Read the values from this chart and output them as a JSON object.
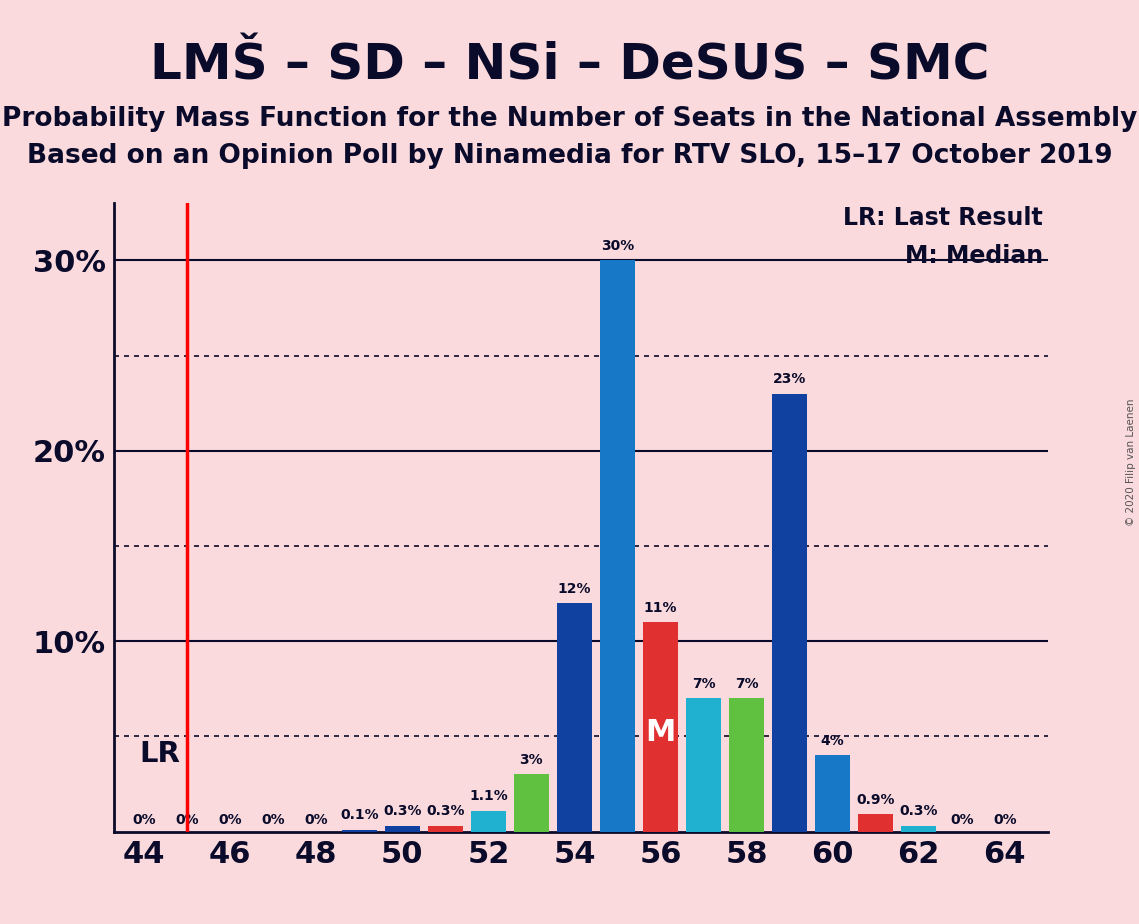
{
  "title": "LMŠ – SD – NSi – DeSUS – SMC",
  "subtitle1": "Probability Mass Function for the Number of Seats in the National Assembly",
  "subtitle2": "Based on an Opinion Poll by Ninamedia for RTV SLO, 15–17 October 2019",
  "copyright": "© 2020 Filip van Laenen",
  "lr_label": "LR: Last Result",
  "median_label": "M: Median",
  "lr_x": 45,
  "median_seat": 56,
  "bar_data": [
    {
      "seat": 44,
      "value": 0.0,
      "color": "#1040a0",
      "label": "0%"
    },
    {
      "seat": 45,
      "value": 0.0,
      "color": "#1040a0",
      "label": "0%"
    },
    {
      "seat": 46,
      "value": 0.0,
      "color": "#1040a0",
      "label": "0%"
    },
    {
      "seat": 47,
      "value": 0.0,
      "color": "#1040a0",
      "label": "0%"
    },
    {
      "seat": 48,
      "value": 0.0,
      "color": "#1040a0",
      "label": "0%"
    },
    {
      "seat": 49,
      "value": 0.1,
      "color": "#1040a0",
      "label": "0.1%"
    },
    {
      "seat": 50,
      "value": 0.3,
      "color": "#1040a0",
      "label": "0.3%"
    },
    {
      "seat": 51,
      "value": 0.3,
      "color": "#e03030",
      "label": "0.3%"
    },
    {
      "seat": 52,
      "value": 1.1,
      "color": "#20b0d0",
      "label": "1.1%"
    },
    {
      "seat": 53,
      "value": 3.0,
      "color": "#60c040",
      "label": "3%"
    },
    {
      "seat": 54,
      "value": 12.0,
      "color": "#1040a0",
      "label": "12%"
    },
    {
      "seat": 55,
      "value": 30.0,
      "color": "#1878c8",
      "label": "30%"
    },
    {
      "seat": 56,
      "value": 11.0,
      "color": "#e03030",
      "label": "11%"
    },
    {
      "seat": 57,
      "value": 7.0,
      "color": "#20b0d0",
      "label": "7%"
    },
    {
      "seat": 58,
      "value": 7.0,
      "color": "#60c040",
      "label": "7%"
    },
    {
      "seat": 59,
      "value": 23.0,
      "color": "#1040a0",
      "label": "23%"
    },
    {
      "seat": 60,
      "value": 4.0,
      "color": "#1878c8",
      "label": "4%"
    },
    {
      "seat": 61,
      "value": 0.9,
      "color": "#e03030",
      "label": "0.9%"
    },
    {
      "seat": 62,
      "value": 0.3,
      "color": "#20b0d0",
      "label": "0.3%"
    },
    {
      "seat": 63,
      "value": 0.0,
      "color": "#1040a0",
      "label": "0%"
    },
    {
      "seat": 64,
      "value": 0.0,
      "color": "#1040a0",
      "label": "0%"
    }
  ],
  "background_color": "#fadadd",
  "xlim_lo": 43.3,
  "xlim_hi": 65.0,
  "ylim_lo": 0,
  "ylim_hi": 33,
  "xticks": [
    44,
    46,
    48,
    50,
    52,
    54,
    56,
    58,
    60,
    62,
    64
  ],
  "yticks_solid": [
    10,
    20,
    30
  ],
  "yticks_dotted": [
    5,
    15,
    25
  ],
  "title_fontsize": 36,
  "subtitle_fontsize": 19,
  "axis_tick_fontsize": 22,
  "bar_label_fontsize": 10,
  "legend_fontsize": 17,
  "lr_fontsize": 21,
  "m_fontsize": 22,
  "bar_width": 0.82
}
